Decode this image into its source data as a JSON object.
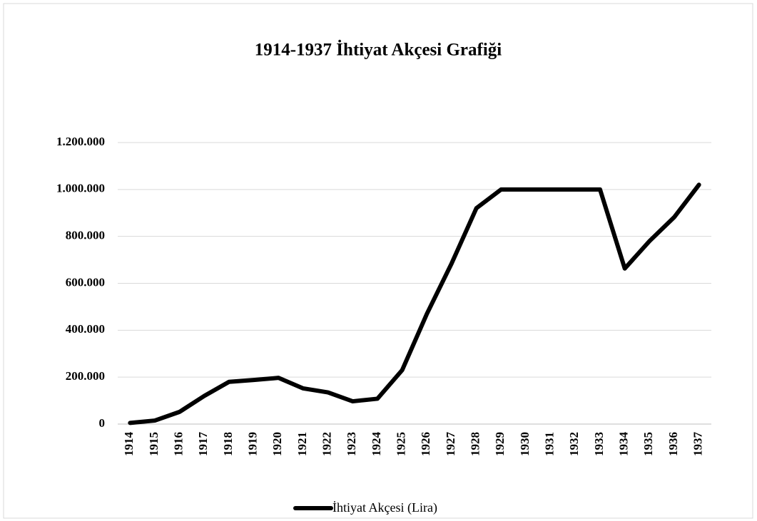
{
  "chart_data": {
    "type": "line",
    "title": "1914-1937 İhtiyat Akçesi Grafiği",
    "categories": [
      "1914",
      "1915",
      "1916",
      "1917",
      "1918",
      "1919",
      "1920",
      "1921",
      "1922",
      "1923",
      "1924",
      "1925",
      "1926",
      "1927",
      "1928",
      "1929",
      "1930",
      "1931",
      "1932",
      "1933",
      "1934",
      "1935",
      "1936",
      "1937"
    ],
    "series": [
      {
        "name": "İhtiyat Akçesi (Lira)",
        "color": "#000000",
        "values": [
          5000,
          15000,
          52000,
          120000,
          180000,
          188000,
          197000,
          152000,
          135000,
          97000,
          108000,
          230000,
          470000,
          685000,
          920000,
          1000000,
          1000000,
          1000000,
          1000000,
          1000000,
          663000,
          780000,
          882000,
          1020000
        ]
      }
    ],
    "ylim": [
      0,
      1200000
    ],
    "yticks": [
      0,
      {
        "value": 200000,
        "label": "200.000"
      },
      {
        "value": 400000,
        "label": "400.000"
      },
      {
        "value": 600000,
        "label": "600.000"
      },
      {
        "value": 800000,
        "label": "800.000"
      },
      {
        "value": 1000000,
        "label": "1.000.000"
      },
      {
        "value": 1200000,
        "label": "1.200.000"
      }
    ],
    "grid": true,
    "legend": "bottom"
  }
}
